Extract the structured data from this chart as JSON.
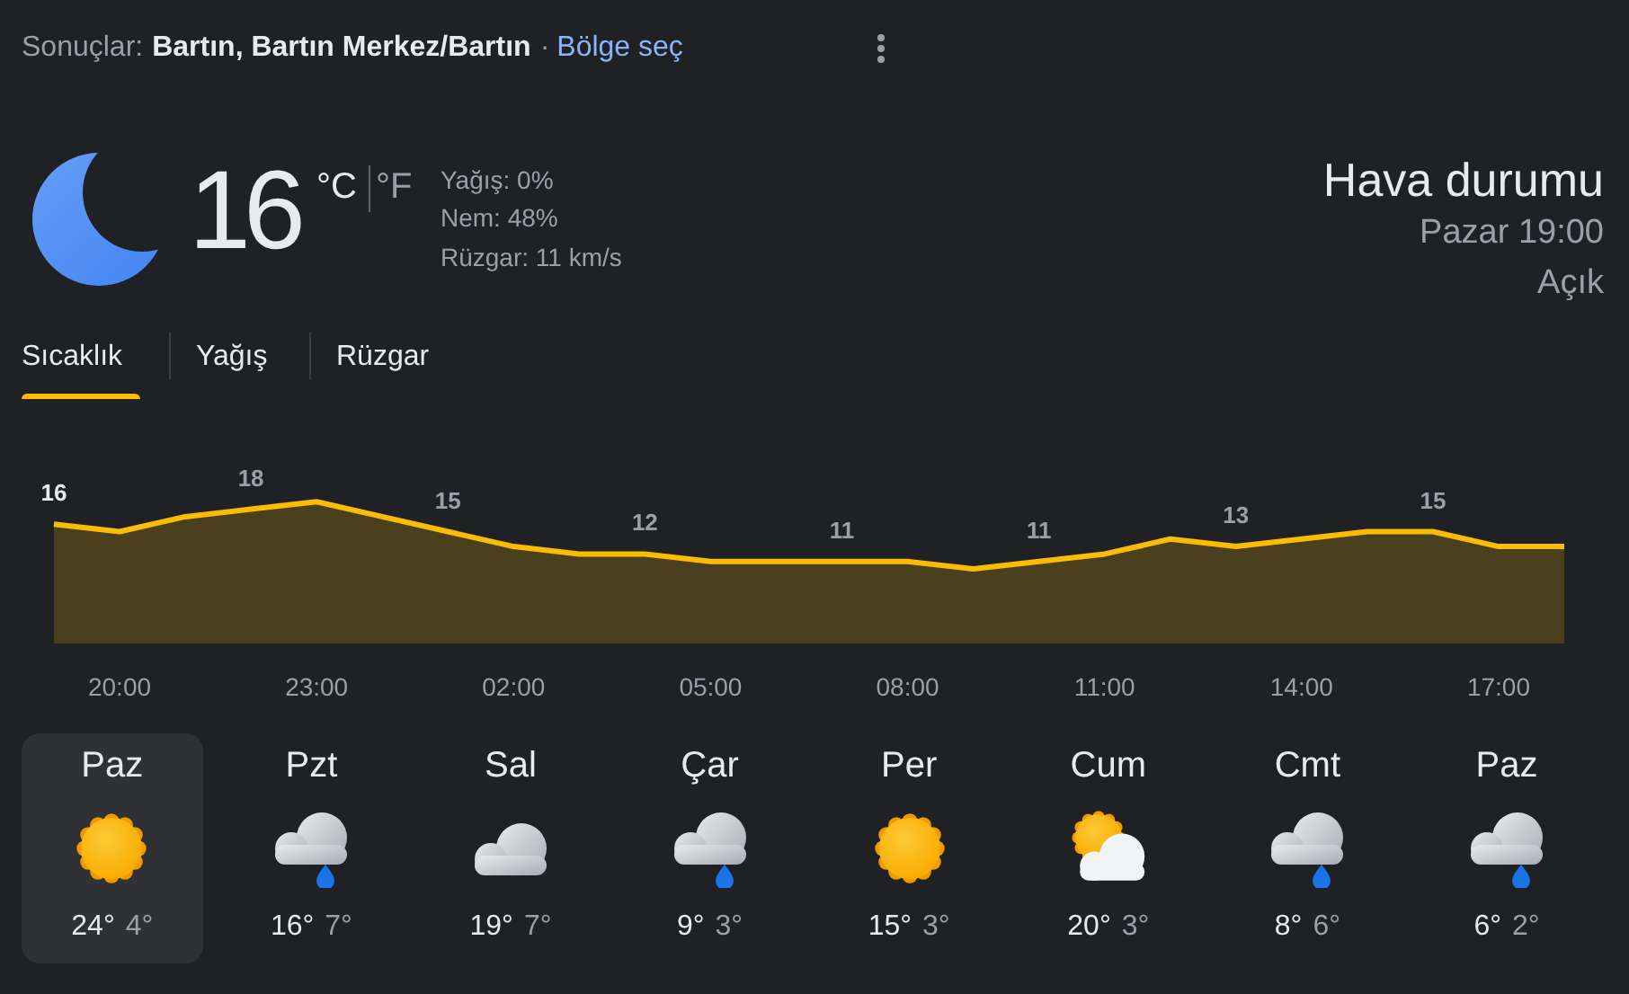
{
  "chart_data": [
    {
      "type": "other",
      "title": "Hava durumu",
      "annotations": [
        "Sonuçlar:",
        "Bartın, Bartın Merkez/Bartın",
        "·",
        "Bölge seç",
        "16",
        "°C",
        "°F",
        "Yağış: 0%",
        "Nem: 48%",
        "Rüzgar: 11 km/s",
        "Pazar 19:00",
        "Açık",
        "Sıcaklık",
        "Yağış",
        "Rüzgar"
      ]
    },
    {
      "type": "area",
      "categories": [
        null,
        "20:00",
        null,
        null,
        "23:00",
        null,
        null,
        "02:00",
        null,
        null,
        "05:00",
        null,
        null,
        "08:00",
        null,
        null,
        "11:00",
        null,
        null,
        "14:00",
        null,
        null,
        "17:00",
        null
      ],
      "values": [
        16,
        15,
        17,
        18,
        19,
        17,
        15,
        13,
        12,
        12,
        11,
        11,
        11,
        11,
        10,
        11,
        12,
        14,
        13,
        14,
        15,
        15,
        13,
        13
      ],
      "value_labels": [
        "16",
        null,
        null,
        "18",
        null,
        null,
        "15",
        null,
        null,
        "12",
        null,
        null,
        "11",
        null,
        null,
        "11",
        null,
        null,
        "13",
        null,
        null,
        "15",
        null,
        null
      ],
      "color": "#fbbc04"
    },
    {
      "type": "other",
      "categories": [
        "Paz",
        "Pzt",
        "Sal",
        "Çar",
        "Per",
        "Cum",
        "Cmt",
        "Paz"
      ],
      "annotations": [
        "24°",
        "4°",
        "16°",
        "7°",
        "19°",
        "7°",
        "9°",
        "3°",
        "15°",
        "3°",
        "20°",
        "3°",
        "8°",
        "6°",
        "6°",
        "2°"
      ]
    }
  ]
}
